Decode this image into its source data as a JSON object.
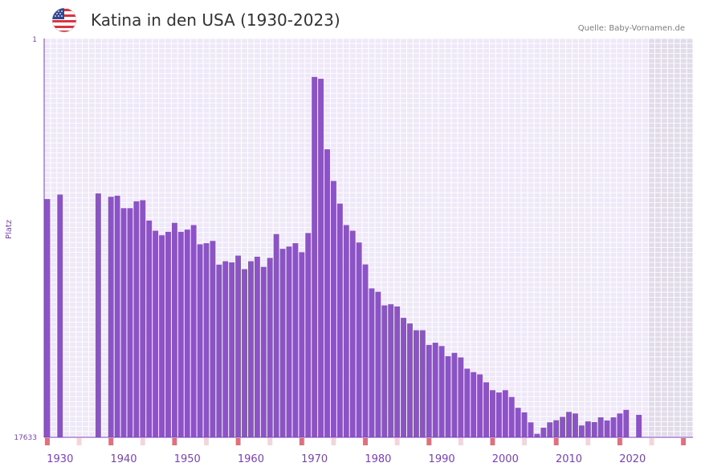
{
  "header": {
    "title": "Katina in den USA (1930-2023)",
    "source": "Quelle: Baby-Vornamen.de"
  },
  "icons": {
    "flag": "usa-flag-icon"
  },
  "colors": {
    "bar": "#8b53c6",
    "plot_bg": "#efe8f8",
    "grid": "#ffffff",
    "future_bg": "#e2dcea",
    "axis": "#7b3fb8",
    "marker_strong": "#e0707c",
    "marker_light": "#f5d5dc"
  },
  "chart_data": {
    "type": "bar",
    "title": "Katina in den USA (1930-2023)",
    "ylabel": "Platz",
    "xlabel": "",
    "y_axis_reversed": true,
    "ylim": [
      1,
      17633
    ],
    "y_ticks": [
      "1",
      "17633"
    ],
    "x_range": [
      1928,
      2029
    ],
    "x_ticks": [
      1930,
      1940,
      1950,
      1960,
      1970,
      1980,
      1990,
      2000,
      2010,
      2020
    ],
    "shaded_years_from": 2023,
    "strong_marker_years": [
      1928,
      1938,
      1948,
      1958,
      1968,
      1978,
      1988,
      1998,
      2008,
      2018,
      2028
    ],
    "light_marker_years": [
      1933,
      1943,
      1953,
      1963,
      1973,
      1983,
      1993,
      2003,
      2013,
      2023
    ],
    "years": [
      1928,
      1929,
      1930,
      1931,
      1932,
      1933,
      1934,
      1935,
      1936,
      1937,
      1938,
      1939,
      1940,
      1941,
      1942,
      1943,
      1944,
      1945,
      1946,
      1947,
      1948,
      1949,
      1950,
      1951,
      1952,
      1953,
      1954,
      1955,
      1956,
      1957,
      1958,
      1959,
      1960,
      1961,
      1962,
      1963,
      1964,
      1965,
      1966,
      1967,
      1968,
      1969,
      1970,
      1971,
      1972,
      1973,
      1974,
      1975,
      1976,
      1977,
      1978,
      1979,
      1980,
      1981,
      1982,
      1983,
      1984,
      1985,
      1986,
      1987,
      1988,
      1989,
      1990,
      1991,
      1992,
      1993,
      1994,
      1995,
      1996,
      1997,
      1998,
      1999,
      2000,
      2001,
      2002,
      2003,
      2004,
      2005,
      2006,
      2007,
      2008,
      2009,
      2010,
      2011,
      2012,
      2013,
      2014,
      2015,
      2016,
      2017,
      2018,
      2019,
      2020,
      2021,
      2022,
      2023,
      2024,
      2025,
      2026,
      2027,
      2028
    ],
    "ranks": [
      7100,
      null,
      6900,
      null,
      null,
      null,
      null,
      null,
      6850,
      null,
      7000,
      6950,
      7500,
      7500,
      7200,
      7150,
      8050,
      8500,
      8700,
      8550,
      8150,
      8550,
      8450,
      8250,
      9100,
      9050,
      8950,
      10000,
      9850,
      9900,
      9600,
      10200,
      9850,
      9650,
      10100,
      9700,
      8650,
      9300,
      9200,
      9050,
      9450,
      8600,
      1700,
      1780,
      4900,
      6300,
      7300,
      8250,
      8500,
      9020,
      9990,
      11050,
      11200,
      11800,
      11750,
      11850,
      12350,
      12600,
      12900,
      12900,
      13550,
      13450,
      13600,
      14050,
      13900,
      14100,
      14600,
      14750,
      14850,
      15200,
      15550,
      15650,
      15550,
      15850,
      16330,
      16530,
      16970,
      17480,
      17210,
      16970,
      16880,
      16730,
      16510,
      16580,
      17110,
      16930,
      16960,
      16750,
      16890,
      16750,
      16580,
      16420,
      null,
      16640,
      null,
      null,
      null,
      null,
      null,
      null,
      null
    ]
  }
}
